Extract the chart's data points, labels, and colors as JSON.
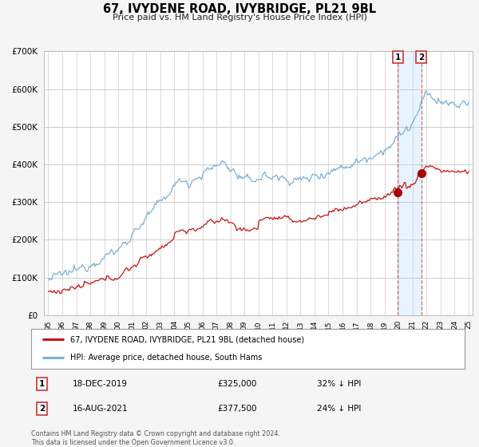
{
  "title": "67, IVYDENE ROAD, IVYBRIDGE, PL21 9BL",
  "subtitle": "Price paid vs. HM Land Registry's House Price Index (HPI)",
  "legend_line1": "67, IVYDENE ROAD, IVYBRIDGE, PL21 9BL (detached house)",
  "legend_line2": "HPI: Average price, detached house, South Hams",
  "annotation1_date": "18-DEC-2019",
  "annotation1_price": "£325,000",
  "annotation1_hpi": "32% ↓ HPI",
  "annotation2_date": "16-AUG-2021",
  "annotation2_price": "£377,500",
  "annotation2_hpi": "24% ↓ HPI",
  "footnote": "Contains HM Land Registry data © Crown copyright and database right 2024.\nThis data is licensed under the Open Government Licence v3.0.",
  "hpi_color": "#7bafd4",
  "price_color": "#cc1111",
  "dot_color": "#aa0000",
  "vline_color": "#cc6666",
  "shade_color": "#ddeeff",
  "background_color": "#f5f5f5",
  "plot_bg_color": "#ffffff",
  "ylim": [
    0,
    700000
  ],
  "yticks": [
    0,
    100000,
    200000,
    300000,
    400000,
    500000,
    600000,
    700000
  ],
  "xlim_start": 1994.7,
  "xlim_end": 2025.3,
  "sale1_year": 2019.96,
  "sale2_year": 2021.62,
  "sale1_price": 325000,
  "sale2_price": 377500
}
